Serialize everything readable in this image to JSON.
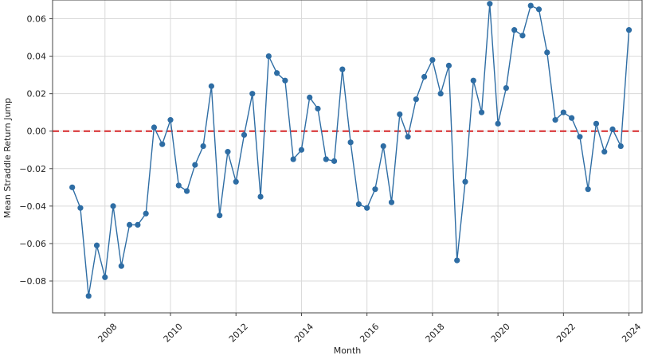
{
  "chart_data": {
    "type": "line",
    "xlabel": "Month",
    "ylabel": "Mean Straddle Return Jump",
    "xlim": [
      2006.4,
      2024.4
    ],
    "ylim": [
      -0.097,
      0.07
    ],
    "x_ticks": [
      2008,
      2010,
      2012,
      2014,
      2016,
      2018,
      2020,
      2022,
      2024
    ],
    "y_ticks": [
      -0.08,
      -0.06,
      -0.04,
      -0.02,
      0.0,
      0.02,
      0.04,
      0.06
    ],
    "y_tick_labels": [
      "−0.08",
      "−0.06",
      "−0.04",
      "−0.02",
      "0.00",
      "0.02",
      "0.04",
      "0.06"
    ],
    "grid": true,
    "reference_line": {
      "y": 0.0,
      "style": "dashed",
      "color": "#d62728"
    },
    "series": [
      {
        "color": "#2e6da4",
        "x": [
          2007.0,
          2007.25,
          2007.5,
          2007.75,
          2008.0,
          2008.25,
          2008.5,
          2008.75,
          2009.0,
          2009.25,
          2009.5,
          2009.75,
          2010.0,
          2010.25,
          2010.5,
          2010.75,
          2011.0,
          2011.25,
          2011.5,
          2011.75,
          2012.0,
          2012.25,
          2012.5,
          2012.75,
          2013.0,
          2013.25,
          2013.5,
          2013.75,
          2014.0,
          2014.25,
          2014.5,
          2014.75,
          2015.0,
          2015.25,
          2015.5,
          2015.75,
          2016.0,
          2016.25,
          2016.5,
          2016.75,
          2017.0,
          2017.25,
          2017.5,
          2017.75,
          2018.0,
          2018.25,
          2018.5,
          2018.75,
          2019.0,
          2019.25,
          2019.5,
          2019.75,
          2020.0,
          2020.25,
          2020.5,
          2020.75,
          2021.0,
          2021.25,
          2021.5,
          2021.75,
          2022.0,
          2022.25,
          2022.5,
          2022.75,
          2023.0,
          2023.25,
          2023.5,
          2023.75,
          2024.0
        ],
        "y": [
          -0.03,
          -0.041,
          -0.088,
          -0.061,
          -0.078,
          -0.04,
          -0.072,
          -0.05,
          -0.05,
          -0.044,
          0.002,
          -0.007,
          0.006,
          -0.029,
          -0.032,
          -0.018,
          -0.008,
          0.024,
          -0.045,
          -0.011,
          -0.027,
          -0.002,
          0.02,
          -0.035,
          0.04,
          0.031,
          0.027,
          -0.015,
          -0.01,
          0.018,
          0.012,
          -0.015,
          -0.016,
          0.033,
          -0.006,
          -0.039,
          -0.041,
          -0.031,
          -0.008,
          -0.038,
          0.009,
          -0.003,
          0.017,
          0.029,
          0.038,
          0.02,
          0.035,
          -0.069,
          -0.027,
          0.027,
          0.01,
          0.068,
          0.004,
          0.023,
          0.054,
          0.051,
          0.067,
          0.065,
          0.042,
          0.006,
          0.01,
          0.007,
          -0.003,
          -0.031,
          0.004,
          -0.011,
          0.001,
          -0.008,
          0.054
        ]
      }
    ]
  }
}
